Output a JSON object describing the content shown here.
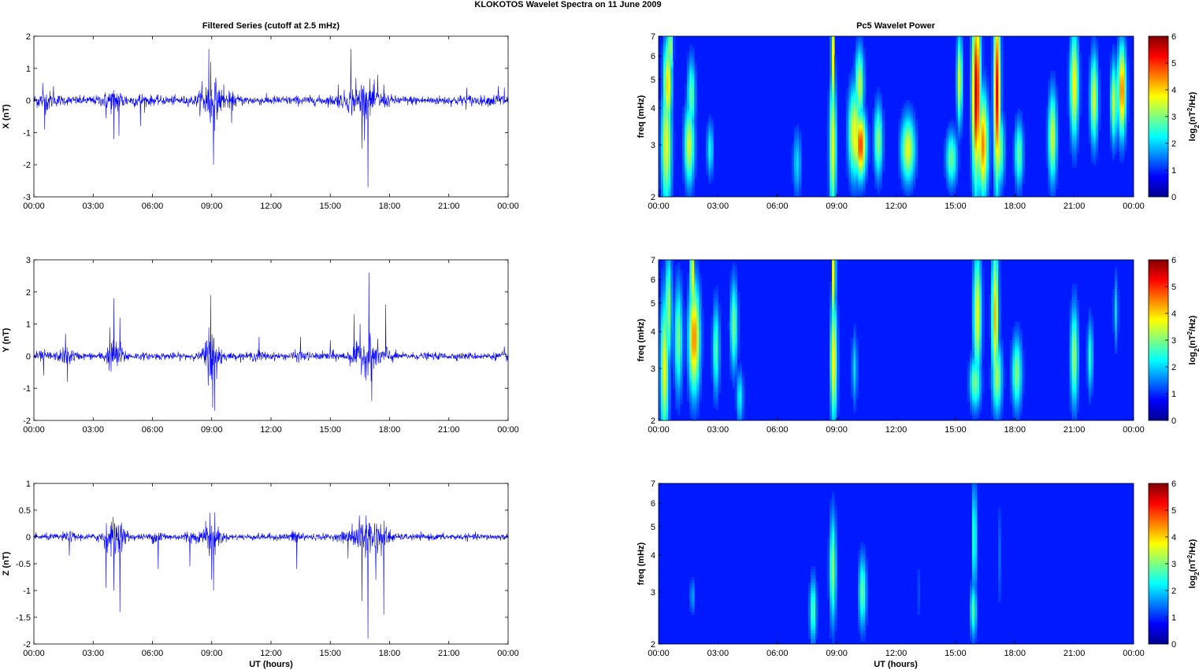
{
  "figure": {
    "title": "KLOKOTOS Wavelet Spectra on 11 June      2009",
    "left_title": "Filtered Series (cutoff at 2.5 mHz)",
    "right_title": "Pc5 Wavelet Power",
    "xlabel": "UT (hours)"
  },
  "chart_data": [
    {
      "type": "line",
      "component": "X",
      "ylabel": "X (nT)",
      "xlim": [
        0,
        24
      ],
      "ylim": [
        -3,
        2
      ],
      "yticks": [
        "-3",
        "-2",
        "-1",
        "0",
        "1",
        "2"
      ],
      "xticks": [
        "00:00",
        "03:00",
        "06:00",
        "09:00",
        "12:00",
        "15:00",
        "18:00",
        "21:00",
        "00:00"
      ],
      "line_color": "#0000ff",
      "noise_amplitude": 0.12,
      "spikes": [
        {
          "t": 0.45,
          "v": 0.55
        },
        {
          "t": 0.55,
          "v": -0.9
        },
        {
          "t": 1.0,
          "v": 0.45
        },
        {
          "t": 3.65,
          "v": -0.55
        },
        {
          "t": 4.05,
          "v": -1.2
        },
        {
          "t": 4.3,
          "v": -1.1
        },
        {
          "t": 5.4,
          "v": -0.8
        },
        {
          "t": 8.5,
          "v": 0.6
        },
        {
          "t": 8.85,
          "v": 1.6
        },
        {
          "t": 8.95,
          "v": 1.2
        },
        {
          "t": 9.0,
          "v": -0.5
        },
        {
          "t": 9.1,
          "v": -2.0
        },
        {
          "t": 9.6,
          "v": 0.5
        },
        {
          "t": 10.0,
          "v": -0.7
        },
        {
          "t": 15.4,
          "v": 0.5
        },
        {
          "t": 16.05,
          "v": 1.6
        },
        {
          "t": 16.3,
          "v": 0.7
        },
        {
          "t": 16.6,
          "v": -1.5
        },
        {
          "t": 16.9,
          "v": -2.7
        },
        {
          "t": 17.4,
          "v": 0.8
        },
        {
          "t": 17.7,
          "v": 0.5
        },
        {
          "t": 21.9,
          "v": 0.4
        },
        {
          "t": 23.5,
          "v": 0.45
        },
        {
          "t": 23.8,
          "v": 0.4
        }
      ]
    },
    {
      "type": "line",
      "component": "Y",
      "ylabel": "Y (nT)",
      "xlim": [
        0,
        24
      ],
      "ylim": [
        -2,
        3
      ],
      "yticks": [
        "-2",
        "-1",
        "0",
        "1",
        "2",
        "3"
      ],
      "xticks": [
        "00:00",
        "03:00",
        "06:00",
        "09:00",
        "12:00",
        "15:00",
        "18:00",
        "21:00",
        "00:00"
      ],
      "line_color": "#0000ff",
      "noise_amplitude": 0.09,
      "spikes": [
        {
          "t": 0.5,
          "v": -0.6
        },
        {
          "t": 1.6,
          "v": 0.7
        },
        {
          "t": 1.7,
          "v": -0.8
        },
        {
          "t": 3.85,
          "v": 0.9
        },
        {
          "t": 4.05,
          "v": 1.8
        },
        {
          "t": 4.35,
          "v": 1.2
        },
        {
          "t": 8.85,
          "v": 0.9
        },
        {
          "t": 8.95,
          "v": 1.9
        },
        {
          "t": 9.05,
          "v": -1.6
        },
        {
          "t": 9.15,
          "v": -1.7
        },
        {
          "t": 11.4,
          "v": 0.6
        },
        {
          "t": 13.5,
          "v": 0.6
        },
        {
          "t": 15.0,
          "v": 0.5
        },
        {
          "t": 16.2,
          "v": 1.3
        },
        {
          "t": 16.5,
          "v": 1.0
        },
        {
          "t": 16.95,
          "v": 2.6
        },
        {
          "t": 17.1,
          "v": -1.4
        },
        {
          "t": 17.8,
          "v": 1.6
        },
        {
          "t": 23.8,
          "v": 0.3
        }
      ]
    },
    {
      "type": "line",
      "component": "Z",
      "ylabel": "Z (nT)",
      "xlim": [
        0,
        24
      ],
      "ylim": [
        -2,
        1
      ],
      "yticks": [
        "-2",
        "-1.5",
        "-1",
        "-0.5",
        "0",
        "0.5",
        "1"
      ],
      "xticks": [
        "00:00",
        "03:00",
        "06:00",
        "09:00",
        "12:00",
        "15:00",
        "18:00",
        "21:00",
        "00:00"
      ],
      "line_color": "#0000ff",
      "noise_amplitude": 0.05,
      "spikes": [
        {
          "t": 1.8,
          "v": -0.35
        },
        {
          "t": 3.65,
          "v": -0.95
        },
        {
          "t": 4.05,
          "v": -1.0
        },
        {
          "t": 4.35,
          "v": -1.4
        },
        {
          "t": 6.3,
          "v": -0.6
        },
        {
          "t": 7.9,
          "v": -0.55
        },
        {
          "t": 8.7,
          "v": 0.3
        },
        {
          "t": 8.9,
          "v": 0.45
        },
        {
          "t": 9.0,
          "v": -0.8
        },
        {
          "t": 9.1,
          "v": -1.0
        },
        {
          "t": 13.3,
          "v": -0.6
        },
        {
          "t": 15.9,
          "v": -0.4
        },
        {
          "t": 16.1,
          "v": 0.25
        },
        {
          "t": 16.6,
          "v": -1.2
        },
        {
          "t": 16.9,
          "v": -1.9
        },
        {
          "t": 17.3,
          "v": -0.8
        },
        {
          "t": 17.7,
          "v": -1.45
        }
      ]
    },
    {
      "type": "heatmap",
      "component": "X",
      "ylabel": "freq (mHz)",
      "yscale": "log",
      "ylim": [
        2,
        7
      ],
      "xlim": [
        0,
        24
      ],
      "yticks": [
        "2",
        "3",
        "4",
        "5",
        "6",
        "7"
      ],
      "xticks": [
        "00:00",
        "03:00",
        "06:00",
        "09:00",
        "12:00",
        "15:00",
        "18:00",
        "21:00",
        "00:00"
      ],
      "colorbar": {
        "label": "log2(nT2/Hz)",
        "range": [
          0,
          6
        ],
        "ticks": [
          "0",
          "1",
          "2",
          "3",
          "4",
          "5",
          "6"
        ],
        "colormap": "jet"
      },
      "blobs": [
        {
          "t": 0.4,
          "f": 3.0,
          "p": 3.4,
          "wt": 0.18,
          "wf": 0.35
        },
        {
          "t": 0.45,
          "f": 4.8,
          "p": 3.8,
          "wt": 0.15,
          "wf": 0.25
        },
        {
          "t": 0.6,
          "f": 6.4,
          "p": 3.2,
          "wt": 0.09,
          "wf": 0.15
        },
        {
          "t": 1.55,
          "f": 3.0,
          "p": 3.2,
          "wt": 0.18,
          "wf": 0.22
        },
        {
          "t": 1.65,
          "f": 4.4,
          "p": 2.5,
          "wt": 0.14,
          "wf": 0.2
        },
        {
          "t": 2.6,
          "f": 2.9,
          "p": 1.8,
          "wt": 0.12,
          "wf": 0.15
        },
        {
          "t": 7.0,
          "f": 2.6,
          "p": 1.5,
          "wt": 0.15,
          "wf": 0.18
        },
        {
          "t": 8.8,
          "f": 3.0,
          "p": 3.3,
          "wt": 0.12,
          "wf": 0.4
        },
        {
          "t": 8.8,
          "f": 6.0,
          "p": 3.6,
          "wt": 0.06,
          "wf": 0.35
        },
        {
          "t": 9.9,
          "f": 3.3,
          "p": 3.5,
          "wt": 0.22,
          "wf": 0.25
        },
        {
          "t": 10.2,
          "f": 3.0,
          "p": 4.8,
          "wt": 0.2,
          "wf": 0.18
        },
        {
          "t": 10.15,
          "f": 4.8,
          "p": 3.2,
          "wt": 0.15,
          "wf": 0.2
        },
        {
          "t": 11.1,
          "f": 3.1,
          "p": 2.8,
          "wt": 0.15,
          "wf": 0.2
        },
        {
          "t": 12.6,
          "f": 2.9,
          "p": 3.3,
          "wt": 0.25,
          "wf": 0.18
        },
        {
          "t": 14.8,
          "f": 2.7,
          "p": 2.5,
          "wt": 0.2,
          "wf": 0.15
        },
        {
          "t": 15.2,
          "f": 5.0,
          "p": 3.2,
          "wt": 0.1,
          "wf": 0.25
        },
        {
          "t": 16.05,
          "f": 4.5,
          "p": 5.6,
          "wt": 0.15,
          "wf": 0.5
        },
        {
          "t": 16.4,
          "f": 3.0,
          "p": 4.3,
          "wt": 0.18,
          "wf": 0.28
        },
        {
          "t": 17.1,
          "f": 4.5,
          "p": 5.2,
          "wt": 0.12,
          "wf": 0.5
        },
        {
          "t": 17.2,
          "f": 2.9,
          "p": 3.0,
          "wt": 0.18,
          "wf": 0.2
        },
        {
          "t": 18.2,
          "f": 2.8,
          "p": 2.5,
          "wt": 0.15,
          "wf": 0.18
        },
        {
          "t": 19.9,
          "f": 3.2,
          "p": 3.2,
          "wt": 0.15,
          "wf": 0.25
        },
        {
          "t": 21.0,
          "f": 4.8,
          "p": 3.6,
          "wt": 0.15,
          "wf": 0.3
        },
        {
          "t": 22.0,
          "f": 4.3,
          "p": 3.2,
          "wt": 0.14,
          "wf": 0.25
        },
        {
          "t": 23.0,
          "f": 4.2,
          "p": 3.0,
          "wt": 0.12,
          "wf": 0.22
        },
        {
          "t": 23.4,
          "f": 4.6,
          "p": 4.4,
          "wt": 0.15,
          "wf": 0.25
        }
      ]
    },
    {
      "type": "heatmap",
      "component": "Y",
      "ylabel": "freq (mHz)",
      "yscale": "log",
      "ylim": [
        2,
        7
      ],
      "xlim": [
        0,
        24
      ],
      "yticks": [
        "2",
        "3",
        "4",
        "5",
        "6",
        "7"
      ],
      "xticks": [
        "00:00",
        "03:00",
        "06:00",
        "09:00",
        "12:00",
        "15:00",
        "18:00",
        "21:00",
        "00:00"
      ],
      "colorbar": {
        "label": "log2(nT2/Hz)",
        "range": [
          0,
          6
        ],
        "ticks": [
          "0",
          "1",
          "2",
          "3",
          "4",
          "5",
          "6"
        ],
        "colormap": "jet"
      },
      "blobs": [
        {
          "t": 0.3,
          "f": 3.0,
          "p": 3.3,
          "wt": 0.15,
          "wf": 0.4
        },
        {
          "t": 0.5,
          "f": 4.8,
          "p": 2.8,
          "wt": 0.12,
          "wf": 0.3
        },
        {
          "t": 1.0,
          "f": 3.8,
          "p": 2.5,
          "wt": 0.15,
          "wf": 0.3
        },
        {
          "t": 1.8,
          "f": 3.8,
          "p": 4.3,
          "wt": 0.2,
          "wf": 0.3
        },
        {
          "t": 1.7,
          "f": 6.2,
          "p": 3.8,
          "wt": 0.07,
          "wf": 0.3
        },
        {
          "t": 2.9,
          "f": 3.5,
          "p": 2.3,
          "wt": 0.12,
          "wf": 0.25
        },
        {
          "t": 3.8,
          "f": 4.2,
          "p": 2.6,
          "wt": 0.13,
          "wf": 0.25
        },
        {
          "t": 4.1,
          "f": 2.4,
          "p": 1.8,
          "wt": 0.12,
          "wf": 0.15
        },
        {
          "t": 8.85,
          "f": 3.2,
          "p": 3.5,
          "wt": 0.12,
          "wf": 0.35
        },
        {
          "t": 8.85,
          "f": 6.3,
          "p": 3.8,
          "wt": 0.06,
          "wf": 0.3
        },
        {
          "t": 9.9,
          "f": 3.0,
          "p": 1.5,
          "wt": 0.1,
          "wf": 0.2
        },
        {
          "t": 16.1,
          "f": 4.6,
          "p": 3.3,
          "wt": 0.15,
          "wf": 0.35
        },
        {
          "t": 16.0,
          "f": 2.7,
          "p": 2.6,
          "wt": 0.2,
          "wf": 0.15
        },
        {
          "t": 17.0,
          "f": 4.5,
          "p": 4.0,
          "wt": 0.12,
          "wf": 0.4
        },
        {
          "t": 17.1,
          "f": 2.8,
          "p": 2.8,
          "wt": 0.18,
          "wf": 0.2
        },
        {
          "t": 18.1,
          "f": 2.9,
          "p": 2.6,
          "wt": 0.18,
          "wf": 0.2
        },
        {
          "t": 21.0,
          "f": 3.3,
          "p": 2.8,
          "wt": 0.14,
          "wf": 0.28
        },
        {
          "t": 21.8,
          "f": 3.3,
          "p": 2.0,
          "wt": 0.1,
          "wf": 0.2
        },
        {
          "t": 23.1,
          "f": 4.7,
          "p": 1.5,
          "wt": 0.08,
          "wf": 0.2
        }
      ]
    },
    {
      "type": "heatmap",
      "component": "Z",
      "ylabel": "freq (mHz)",
      "yscale": "log",
      "ylim": [
        2,
        7
      ],
      "xlim": [
        0,
        24
      ],
      "yticks": [
        "2",
        "3",
        "4",
        "5",
        "6",
        "7"
      ],
      "xticks": [
        "00:00",
        "03:00",
        "06:00",
        "09:00",
        "12:00",
        "15:00",
        "18:00",
        "21:00",
        "00:00"
      ],
      "colorbar": {
        "label": "log2(nT2/Hz)",
        "range": [
          0,
          6
        ],
        "ticks": [
          "0",
          "1",
          "2",
          "3",
          "4",
          "5",
          "6"
        ],
        "colormap": "jet"
      },
      "blobs": [
        {
          "t": 1.7,
          "f": 2.9,
          "p": 1.2,
          "wt": 0.08,
          "wf": 0.1
        },
        {
          "t": 7.8,
          "f": 2.6,
          "p": 2.3,
          "wt": 0.12,
          "wf": 0.18
        },
        {
          "t": 8.8,
          "f": 3.6,
          "p": 2.6,
          "wt": 0.12,
          "wf": 0.3
        },
        {
          "t": 10.3,
          "f": 3.0,
          "p": 2.4,
          "wt": 0.14,
          "wf": 0.2
        },
        {
          "t": 15.9,
          "f": 2.6,
          "p": 2.2,
          "wt": 0.12,
          "wf": 0.15
        },
        {
          "t": 15.95,
          "f": 4.6,
          "p": 2.3,
          "wt": 0.08,
          "wf": 0.3
        },
        {
          "t": 13.1,
          "f": 3.0,
          "p": 0.7,
          "wt": 0.05,
          "wf": 0.2
        },
        {
          "t": 17.2,
          "f": 4.0,
          "p": 0.8,
          "wt": 0.05,
          "wf": 0.3
        }
      ]
    }
  ]
}
